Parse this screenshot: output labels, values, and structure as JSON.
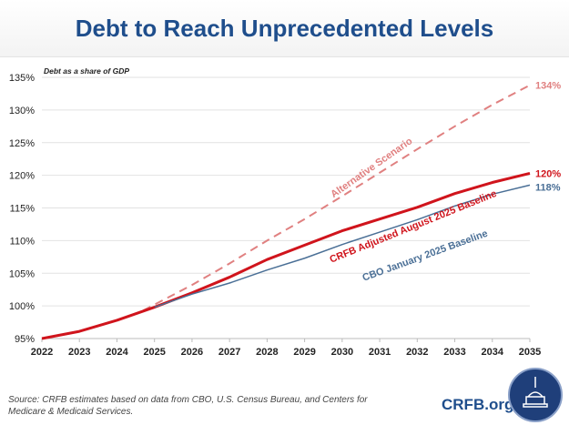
{
  "title": "Debt to Reach Unprecedented Levels",
  "source": "Source: CRFB estimates based on data from CBO, U.S. Census Bureau, and Centers for Medicare & Medicaid Services.",
  "brand": "CRFB.org",
  "chart_data": {
    "type": "line",
    "ylabel": "Debt as a share of GDP",
    "x": [
      2022,
      2023,
      2024,
      2025,
      2026,
      2027,
      2028,
      2029,
      2030,
      2031,
      2032,
      2033,
      2034,
      2035
    ],
    "xlim": [
      2022,
      2035
    ],
    "ylim": [
      95,
      135
    ],
    "yticks": [
      95,
      100,
      105,
      110,
      115,
      120,
      125,
      130,
      135
    ],
    "ytick_labels": [
      "95%",
      "100%",
      "105%",
      "110%",
      "115%",
      "120%",
      "125%",
      "130%",
      "135%"
    ],
    "grid": true,
    "series": [
      {
        "name": "Alternative Scenario",
        "style": "dashed",
        "color": "#e08080",
        "x": [
          2024.7,
          2025,
          2026,
          2027,
          2028,
          2029,
          2030,
          2031,
          2032,
          2033,
          2034,
          2035
        ],
        "values": [
          99.3,
          100.2,
          103.2,
          106.5,
          110,
          113.3,
          116.8,
          120.4,
          124,
          127.5,
          130.8,
          133.8
        ],
        "end_label": "134%"
      },
      {
        "name": "CRFB Adjusted August 2025 Baseline",
        "style": "solid",
        "color": "#d0141c",
        "x": [
          2022,
          2023,
          2024,
          2025,
          2026,
          2027,
          2028,
          2029,
          2030,
          2031,
          2032,
          2033,
          2034,
          2035
        ],
        "values": [
          95,
          96.1,
          97.8,
          99.8,
          102,
          104.4,
          107.1,
          109.3,
          111.5,
          113.3,
          115.1,
          117.2,
          118.9,
          120.3
        ],
        "end_label": "120%"
      },
      {
        "name": "CBO January 2025 Baseline",
        "style": "solid",
        "color": "#4a6f96",
        "x": [
          2025,
          2026,
          2027,
          2028,
          2029,
          2030,
          2031,
          2032,
          2033,
          2034,
          2035
        ],
        "values": [
          99.8,
          101.8,
          103.5,
          105.5,
          107.3,
          109.4,
          111.3,
          113.2,
          115.3,
          117.1,
          118.5
        ],
        "end_label": "118%"
      }
    ]
  }
}
